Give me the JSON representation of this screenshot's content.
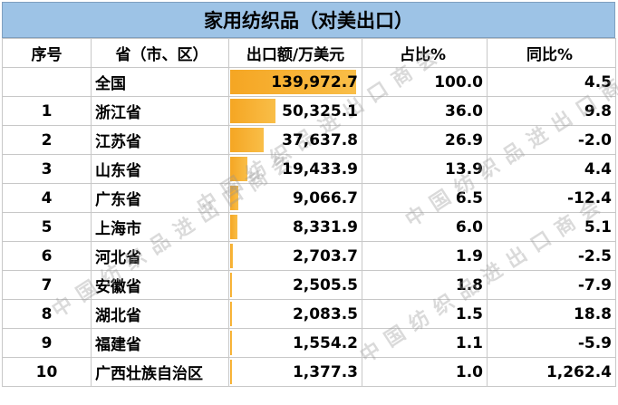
{
  "title": "家用纺织品（对美出口）",
  "headers": {
    "index": "序号",
    "province": "省（市、区）",
    "exports": "出口额/万美元",
    "share": "占比%",
    "yoy": "同比%"
  },
  "rows": [
    {
      "index": "",
      "province": "全国",
      "exports": "139,972.7",
      "share": "100.0",
      "yoy": "4.5",
      "bar_fraction": 1.0
    },
    {
      "index": "1",
      "province": "浙江省",
      "exports": "50,325.1",
      "share": "36.0",
      "yoy": "9.8",
      "bar_fraction": 0.3595
    },
    {
      "index": "2",
      "province": "江苏省",
      "exports": "37,637.8",
      "share": "26.9",
      "yoy": "-2.0",
      "bar_fraction": 0.2689
    },
    {
      "index": "3",
      "province": "山东省",
      "exports": "19,433.9",
      "share": "13.9",
      "yoy": "4.4",
      "bar_fraction": 0.1388
    },
    {
      "index": "4",
      "province": "广东省",
      "exports": "9,066.7",
      "share": "6.5",
      "yoy": "-12.4",
      "bar_fraction": 0.0648
    },
    {
      "index": "5",
      "province": "上海市",
      "exports": "8,331.9",
      "share": "6.0",
      "yoy": "5.1",
      "bar_fraction": 0.0595
    },
    {
      "index": "6",
      "province": "河北省",
      "exports": "2,703.7",
      "share": "1.9",
      "yoy": "-2.5",
      "bar_fraction": 0.0193
    },
    {
      "index": "7",
      "province": "安徽省",
      "exports": "2,505.5",
      "share": "1.8",
      "yoy": "-7.9",
      "bar_fraction": 0.0179
    },
    {
      "index": "8",
      "province": "湖北省",
      "exports": "2,083.5",
      "share": "1.5",
      "yoy": "18.8",
      "bar_fraction": 0.0149
    },
    {
      "index": "9",
      "province": "福建省",
      "exports": "1,554.2",
      "share": "1.1",
      "yoy": "-5.9",
      "bar_fraction": 0.0111
    },
    {
      "index": "10",
      "province": "广西壮族自治区",
      "exports": "1,377.3",
      "share": "1.0",
      "yoy": "1,262.4",
      "bar_fraction": 0.0098
    }
  ],
  "watermark": "中国纺织品进出口商会",
  "colors": {
    "title_bg": "#9dc3e6",
    "bar": "#f5a623",
    "grid": "#c8c8c8"
  }
}
